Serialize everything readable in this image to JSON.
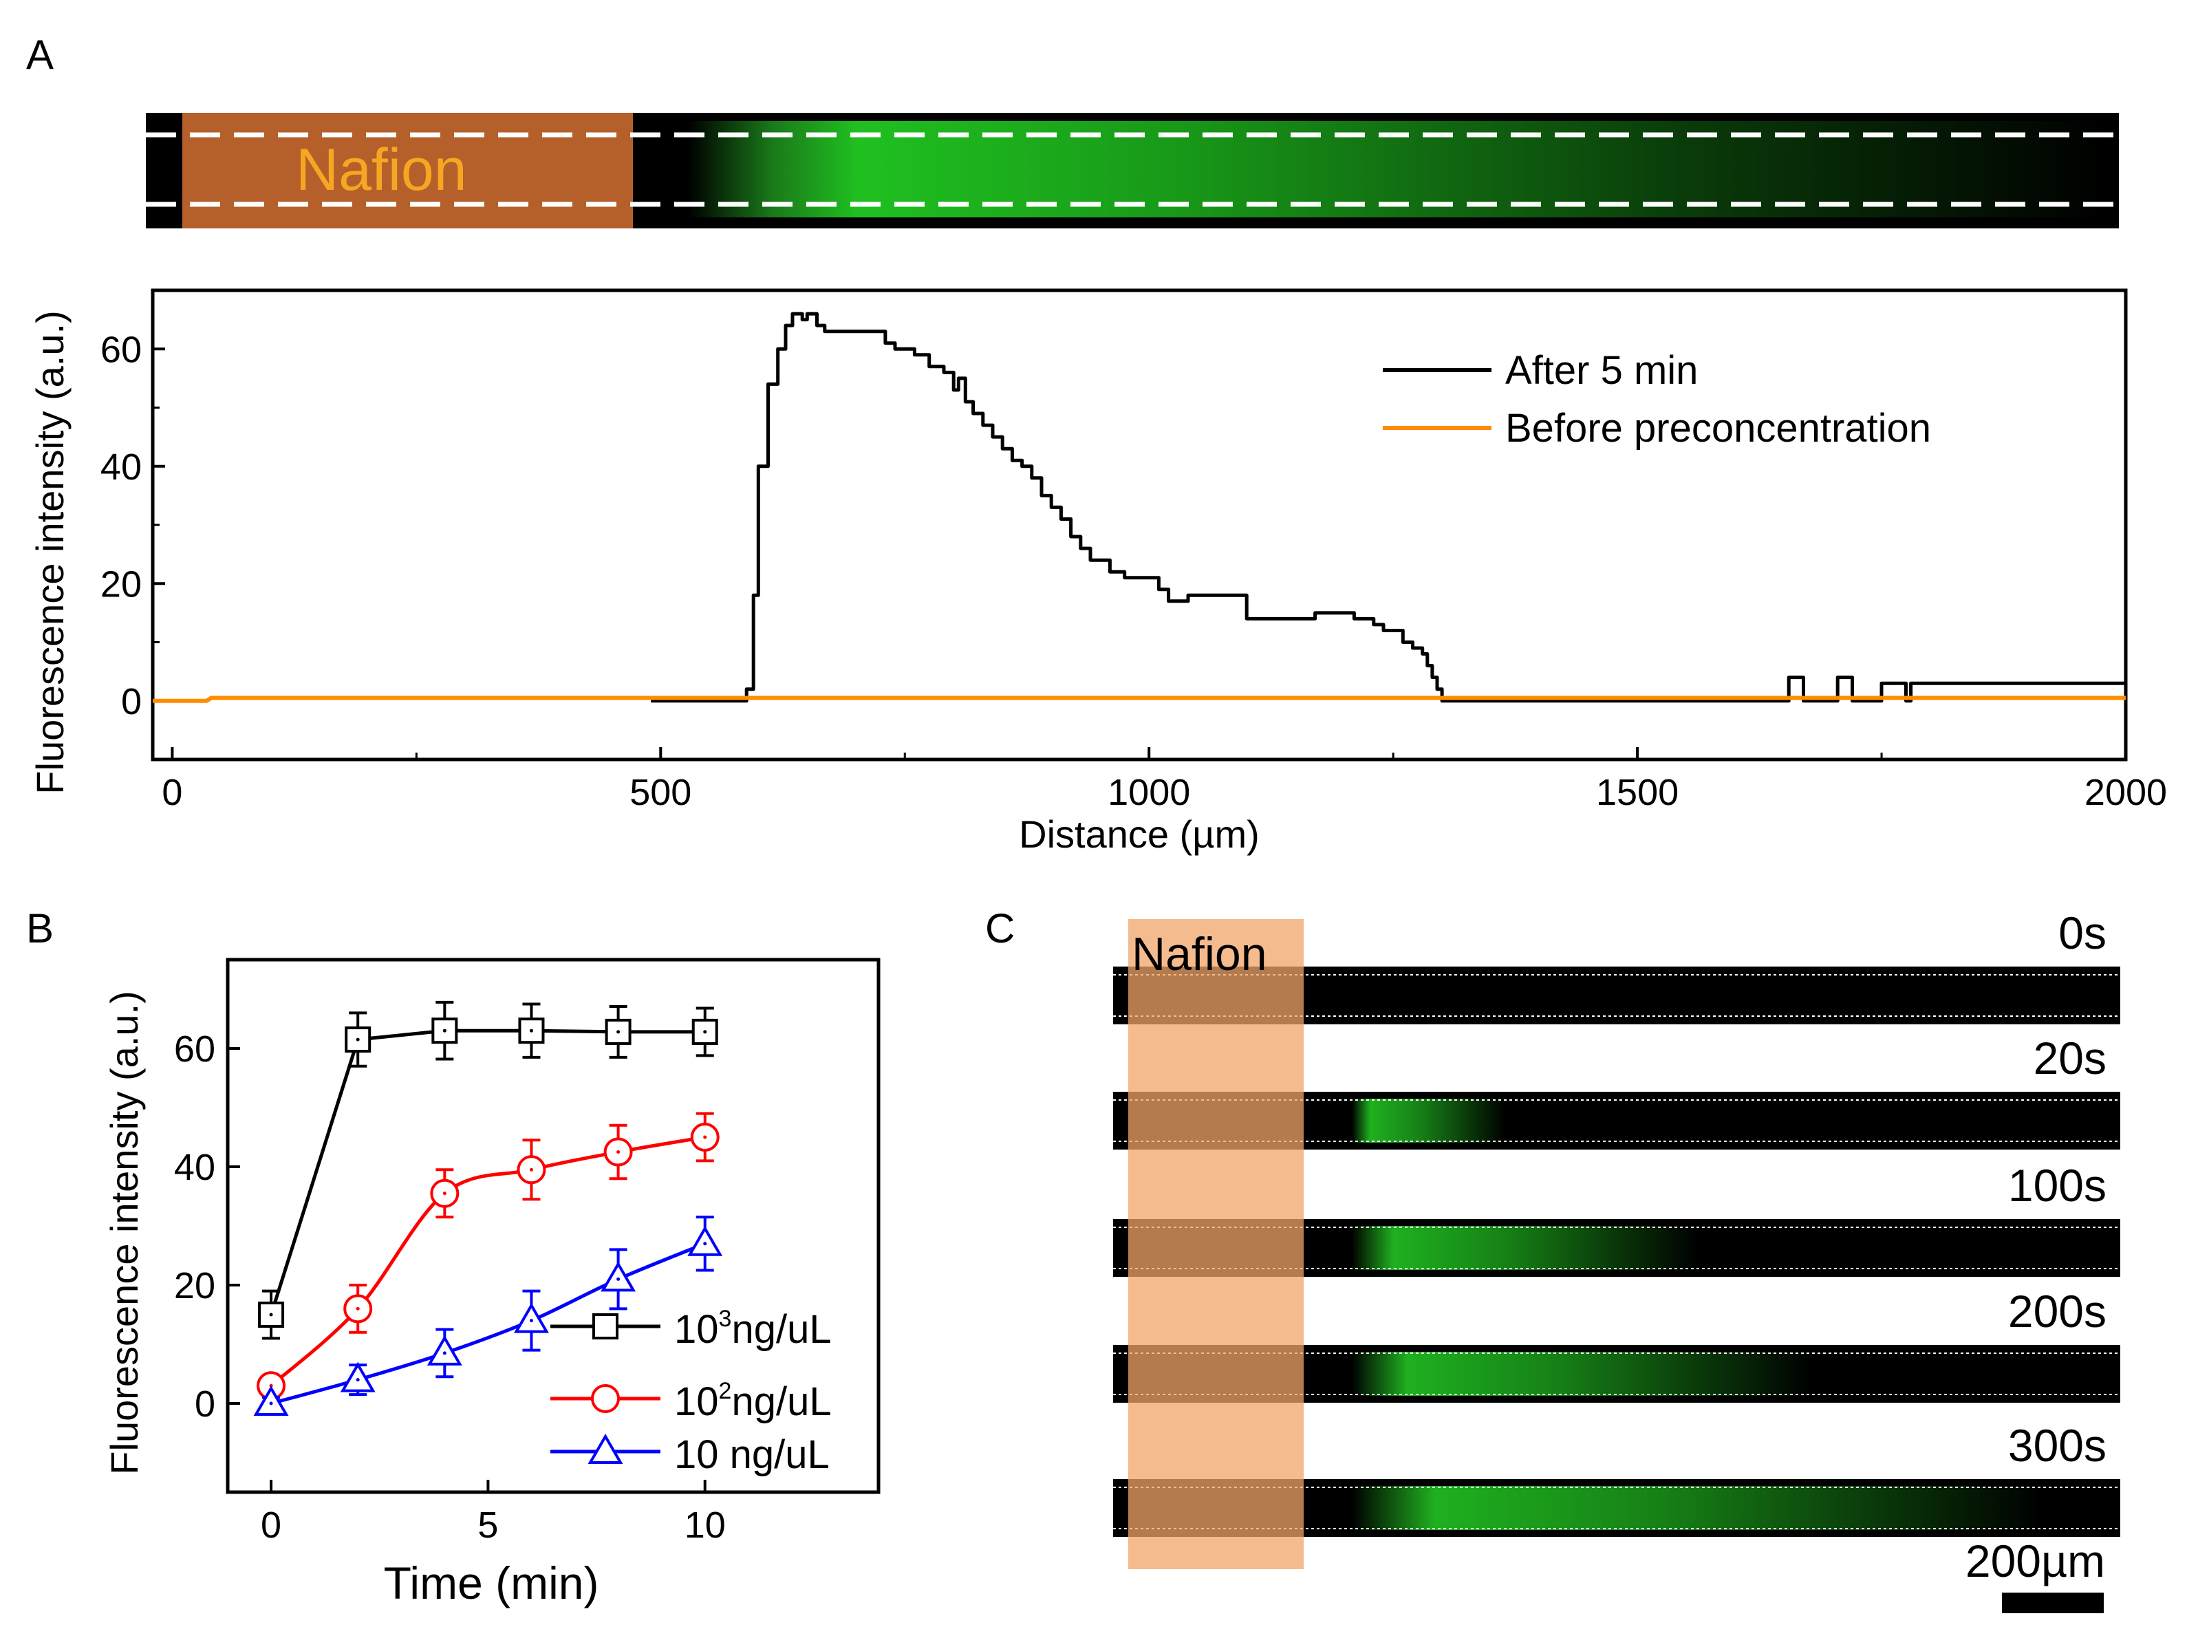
{
  "panels": {
    "a": {
      "letter": "A"
    },
    "b": {
      "letter": "B"
    },
    "c": {
      "letter": "C"
    }
  },
  "colors": {
    "nafion": "#b5602a",
    "nafion_light": "#f0a46a",
    "fluor_green": "#1fd11f",
    "orange_line": "#ff8c00",
    "black": "#000000",
    "red": "#ff0000",
    "blue": "#0000ff"
  },
  "channel_image_a": {
    "label": "Nafion"
  },
  "chart_data": [
    {
      "id": "A",
      "type": "line",
      "title": "",
      "xlabel": "Distance (µm)",
      "ylabel": "Fluorescence intensity (a.u.)",
      "xlim": [
        -20,
        2000
      ],
      "ylim": [
        -10,
        70
      ],
      "xticks": [
        0,
        500,
        1000,
        1500,
        2000
      ],
      "yticks": [
        0,
        20,
        40,
        60
      ],
      "legend_position": "top-right",
      "series": [
        {
          "name": "After 5 min",
          "color": "#000000",
          "x": [
            490,
            580,
            588,
            595,
            600,
            610,
            620,
            628,
            635,
            645,
            650,
            660,
            668,
            690,
            720,
            730,
            740,
            760,
            775,
            790,
            800,
            805,
            812,
            820,
            830,
            840,
            850,
            860,
            870,
            880,
            890,
            900,
            910,
            920,
            930,
            940,
            950,
            960,
            975,
            985,
            1010,
            1020,
            1030,
            1040,
            1100,
            1150,
            1170,
            1200,
            1210,
            1220,
            1230,
            1240,
            1250,
            1260,
            1270,
            1280,
            1285,
            1290,
            1295,
            1300,
            1650,
            1655,
            1665,
            1670,
            1700,
            1705,
            1715,
            1720,
            1745,
            1750,
            1770,
            1775,
            1780,
            1785,
            1790,
            1850,
            1900,
            2000
          ],
          "y": [
            0,
            0,
            2,
            18,
            40,
            54,
            60,
            64,
            66,
            65,
            66,
            64,
            63,
            63,
            63,
            61,
            60,
            59,
            57,
            56,
            53,
            55,
            51,
            49,
            47,
            45,
            43,
            41,
            40,
            38,
            35,
            33,
            31,
            28,
            26,
            24,
            24,
            22,
            21,
            21,
            19,
            17,
            17,
            18,
            14,
            14,
            15,
            15,
            14,
            14,
            13,
            12,
            12,
            10,
            9,
            8,
            6,
            4,
            2,
            0,
            0,
            4,
            4,
            0,
            0,
            4,
            4,
            0,
            0,
            3,
            3,
            0,
            3,
            3,
            3,
            3,
            3,
            3
          ]
        },
        {
          "name": "Before preconcentration",
          "color": "#ff8c00",
          "x": [
            -20,
            35,
            40,
            2000
          ],
          "y": [
            0,
            0,
            0.5,
            0.5
          ]
        }
      ]
    },
    {
      "id": "B",
      "type": "line",
      "title": "",
      "xlabel": "Time (min)",
      "ylabel": "Fluorescence intensity (a.u.)",
      "xlim": [
        -1,
        14
      ],
      "ylim": [
        -15,
        75
      ],
      "xticks": [
        0,
        5,
        10
      ],
      "yticks": [
        0,
        20,
        40,
        60
      ],
      "legend_position": "bottom-right",
      "x": [
        0,
        2,
        4,
        6,
        8,
        10
      ],
      "series": [
        {
          "name": "10³ng/uL",
          "label_base": "10",
          "label_sup": "3",
          "label_rest": "ng/uL",
          "color": "#000000",
          "marker": "square",
          "values": [
            15,
            61.5,
            63,
            63,
            62.8,
            62.8
          ],
          "errors": [
            4,
            4.5,
            4.8,
            4.5,
            4.3,
            4.0
          ]
        },
        {
          "name": "10²ng/uL",
          "label_base": "10",
          "label_sup": "2",
          "label_rest": "ng/uL",
          "color": "#ff0000",
          "marker": "circle",
          "values": [
            3,
            16,
            35.5,
            39.5,
            42.5,
            45
          ],
          "errors": [
            1.5,
            4,
            4,
            5,
            4.5,
            4
          ]
        },
        {
          "name": "10 ng/uL",
          "label_base": "10 ng/uL",
          "label_sup": "",
          "label_rest": "",
          "color": "#0000ff",
          "marker": "triangle",
          "values": [
            0,
            4,
            8.5,
            14,
            21,
            27
          ],
          "errors": [
            1,
            2.5,
            4,
            5,
            5,
            4.5
          ]
        }
      ]
    }
  ],
  "panel_c": {
    "nafion_label": "Nafion",
    "scale_bar_label": "200µm",
    "rows": [
      {
        "time": "0s",
        "green_fraction": 0.0
      },
      {
        "time": "20s",
        "green_fraction": 0.2
      },
      {
        "time": "100s",
        "green_fraction": 0.45
      },
      {
        "time": "200s",
        "green_fraction": 0.6
      },
      {
        "time": "300s",
        "green_fraction": 0.9
      }
    ]
  }
}
